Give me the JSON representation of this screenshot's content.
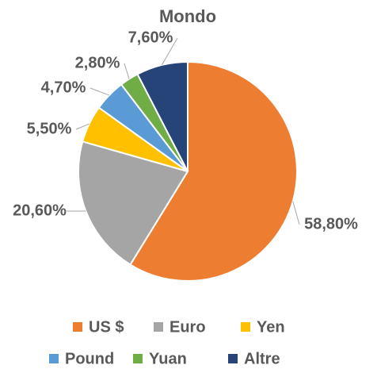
{
  "chart_data": {
    "type": "pie",
    "title": "Mondo",
    "categories": [
      "US $",
      "Euro",
      "Yen",
      "Pound",
      "Yuan",
      "Altre"
    ],
    "values": [
      58.8,
      20.6,
      5.5,
      4.7,
      2.8,
      7.6
    ],
    "value_labels": [
      "58,80%",
      "20,60%",
      "5,50%",
      "4,70%",
      "2,80%",
      "7,60%"
    ],
    "colors": [
      "#ed7d31",
      "#a5a5a5",
      "#ffc000",
      "#5b9bd5",
      "#70ad47",
      "#264478"
    ],
    "legend": "bottom"
  }
}
